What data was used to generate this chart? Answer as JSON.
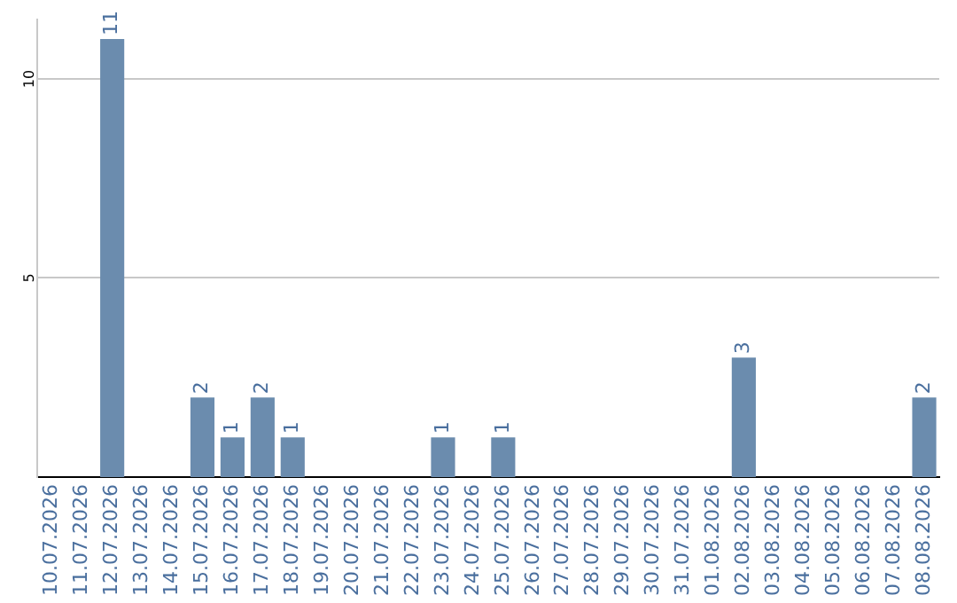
{
  "chart_data": {
    "type": "bar",
    "categories": [
      "10.07.2026",
      "11.07.2026",
      "12.07.2026",
      "13.07.2026",
      "14.07.2026",
      "15.07.2026",
      "16.07.2026",
      "17.07.2026",
      "18.07.2026",
      "19.07.2026",
      "20.07.2026",
      "21.07.2026",
      "22.07.2026",
      "23.07.2026",
      "24.07.2026",
      "25.07.2026",
      "26.07.2026",
      "27.07.2026",
      "28.07.2026",
      "29.07.2026",
      "30.07.2026",
      "31.07.2026",
      "01.08.2026",
      "02.08.2026",
      "03.08.2026",
      "04.08.2026",
      "05.08.2026",
      "06.08.2026",
      "07.08.2026",
      "08.08.2026"
    ],
    "values": [
      0,
      0,
      11,
      0,
      0,
      2,
      1,
      2,
      1,
      0,
      0,
      0,
      0,
      1,
      0,
      1,
      0,
      0,
      0,
      0,
      0,
      0,
      0,
      3,
      0,
      0,
      0,
      0,
      0,
      2
    ],
    "value_labels": [
      null,
      null,
      "11",
      null,
      null,
      "2",
      "1",
      "2",
      "1",
      null,
      null,
      null,
      null,
      "1",
      null,
      "1",
      null,
      null,
      null,
      null,
      null,
      null,
      null,
      "3",
      null,
      null,
      null,
      null,
      null,
      "2"
    ],
    "color": "#6b8cae",
    "ylim": [
      0,
      11.5
    ],
    "yticks": [
      5,
      10
    ],
    "grid": "y",
    "legend": false
  }
}
